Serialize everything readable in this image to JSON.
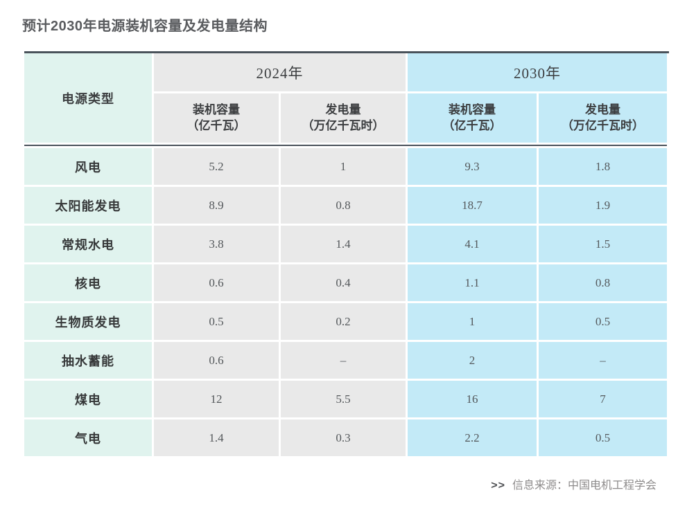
{
  "title": "预计2030年电源装机容量及发电量结构",
  "colors": {
    "row_label_bg": "#e0f3ee",
    "group_2024_bg": "#e9e9e9",
    "group_2030_bg": "#c3eaf7",
    "rule_line": "#49525a",
    "title_text": "#595b5e"
  },
  "chart_data": {
    "type": "table",
    "title": "预计2030年电源装机容量及发电量结构",
    "row_header_label": "电源类型",
    "groups": [
      {
        "year": "2024年",
        "capacity_label": "装机容量",
        "capacity_unit": "（亿千瓦）",
        "generation_label": "发电量",
        "generation_unit": "（万亿千瓦时）"
      },
      {
        "year": "2030年",
        "capacity_label": "装机容量",
        "capacity_unit": "（亿千瓦）",
        "generation_label": "发电量",
        "generation_unit": "（万亿千瓦时）"
      }
    ],
    "rows": [
      {
        "type": "风电",
        "values": [
          "5.2",
          "1",
          "9.3",
          "1.8"
        ]
      },
      {
        "type": "太阳能发电",
        "values": [
          "8.9",
          "0.8",
          "18.7",
          "1.9"
        ]
      },
      {
        "type": "常规水电",
        "values": [
          "3.8",
          "1.4",
          "4.1",
          "1.5"
        ]
      },
      {
        "type": "核电",
        "values": [
          "0.6",
          "0.4",
          "1.1",
          "0.8"
        ]
      },
      {
        "type": "生物质发电",
        "values": [
          "0.5",
          "0.2",
          "1",
          "0.5"
        ]
      },
      {
        "type": "抽水蓄能",
        "values": [
          "0.6",
          "–",
          "2",
          "–"
        ]
      },
      {
        "type": "煤电",
        "values": [
          "12",
          "5.5",
          "16",
          "7"
        ]
      },
      {
        "type": "气电",
        "values": [
          "1.4",
          "0.3",
          "2.2",
          "0.5"
        ]
      }
    ],
    "source_marker": ">>",
    "source_text": "信息来源：中国电机工程学会"
  }
}
